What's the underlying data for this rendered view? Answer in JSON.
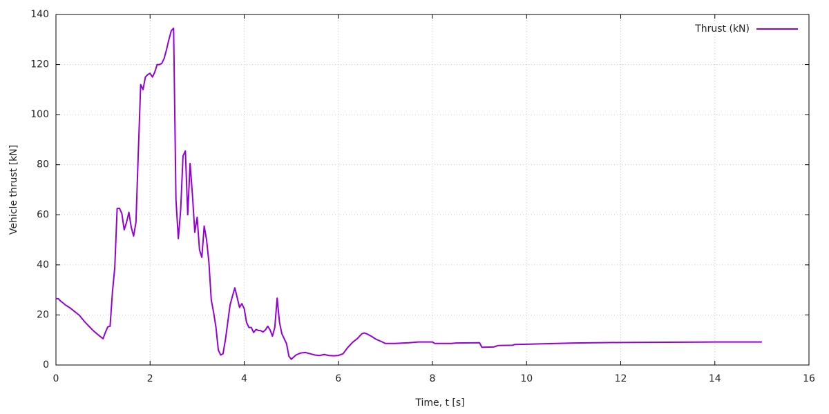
{
  "chart_data": {
    "type": "line",
    "xlabel": "Time, t [s]",
    "ylabel": "Vehicle thrust [kN]",
    "x": [
      0.0,
      0.05,
      0.1,
      0.15,
      0.2,
      0.3,
      0.4,
      0.5,
      0.6,
      0.7,
      0.8,
      0.9,
      1.0,
      1.05,
      1.1,
      1.15,
      1.2,
      1.25,
      1.3,
      1.35,
      1.4,
      1.45,
      1.5,
      1.55,
      1.6,
      1.65,
      1.7,
      1.75,
      1.8,
      1.85,
      1.9,
      1.95,
      2.0,
      2.05,
      2.1,
      2.15,
      2.2,
      2.25,
      2.3,
      2.35,
      2.4,
      2.45,
      2.5,
      2.55,
      2.6,
      2.65,
      2.7,
      2.75,
      2.8,
      2.85,
      2.9,
      2.95,
      3.0,
      3.05,
      3.1,
      3.15,
      3.2,
      3.25,
      3.3,
      3.35,
      3.4,
      3.45,
      3.5,
      3.55,
      3.6,
      3.65,
      3.7,
      3.75,
      3.8,
      3.85,
      3.9,
      3.95,
      4.0,
      4.05,
      4.1,
      4.15,
      4.2,
      4.25,
      4.3,
      4.35,
      4.4,
      4.45,
      4.5,
      4.55,
      4.6,
      4.65,
      4.7,
      4.75,
      4.8,
      4.85,
      4.9,
      4.95,
      5.0,
      5.1,
      5.2,
      5.3,
      5.4,
      5.5,
      5.6,
      5.7,
      5.8,
      5.9,
      6.0,
      6.1,
      6.2,
      6.3,
      6.4,
      6.5,
      6.55,
      6.6,
      6.7,
      6.8,
      6.9,
      7.0,
      7.2,
      7.5,
      7.7,
      8.0,
      8.05,
      8.4,
      8.5,
      9.0,
      9.05,
      9.3,
      9.4,
      9.7,
      9.75,
      10,
      11,
      12,
      13,
      14,
      15
    ],
    "series": [
      {
        "name": "Thrust (kN)",
        "color": "#9400d3",
        "values": [
          26.5,
          26.5,
          25.5,
          24.8,
          24,
          22.8,
          21.3,
          19.8,
          17.5,
          15.5,
          13.6,
          12,
          10.5,
          13,
          15.2,
          15.5,
          29,
          39,
          62.5,
          62.6,
          60.5,
          54,
          57,
          61,
          55,
          51.5,
          57,
          85,
          112,
          110,
          115,
          116,
          116.5,
          115,
          117,
          120,
          120,
          120.5,
          122.5,
          126,
          130,
          133.5,
          134.5,
          66,
          50.5,
          62,
          83.5,
          85.5,
          60,
          80.5,
          68,
          53,
          59,
          46,
          43,
          55.5,
          50,
          41,
          26,
          21,
          15,
          6,
          4,
          4.5,
          10,
          17,
          24,
          27.5,
          30.8,
          27,
          23,
          24.5,
          22.5,
          17,
          15,
          15,
          13,
          14.2,
          13.8,
          13.7,
          13.2,
          14,
          15.5,
          14,
          11.5,
          15,
          26.7,
          17,
          12.5,
          10.5,
          8.5,
          3.5,
          2.3,
          4,
          4.8,
          5,
          4.5,
          4,
          3.8,
          4.2,
          3.8,
          3.7,
          3.8,
          4.5,
          7,
          9,
          10.5,
          12.5,
          12.8,
          12.5,
          11.5,
          10.3,
          9.5,
          8.6,
          8.6,
          8.9,
          9.2,
          9.2,
          8.6,
          8.6,
          8.8,
          8.9,
          7.1,
          7.2,
          7.8,
          7.9,
          8.2,
          8.3,
          8.8,
          9.0,
          9.1,
          9.2,
          9.2
        ]
      }
    ],
    "xlim": [
      0,
      16
    ],
    "xticks": [
      0,
      2,
      4,
      6,
      8,
      10,
      12,
      14,
      16
    ],
    "ylim": [
      0,
      140
    ],
    "yticks": [
      0,
      20,
      40,
      60,
      80,
      100,
      120,
      140
    ],
    "grid": true,
    "legend": "top-right"
  }
}
